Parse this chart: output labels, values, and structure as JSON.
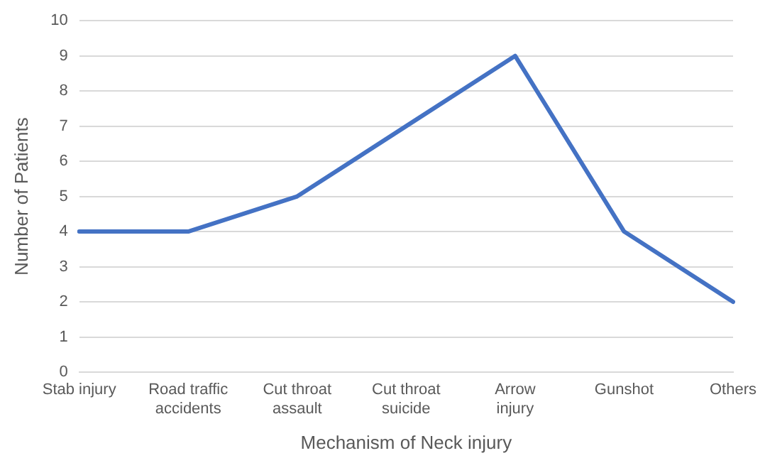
{
  "chart_data": {
    "type": "line",
    "xlabel": "Mechanism of Neck injury",
    "ylabel": "Number of Patients",
    "categories": [
      "Stab injury",
      "Road traffic accidents",
      "Cut throat assault",
      "Cut throat suicide",
      "Arrow injury",
      "Gunshot",
      "Others"
    ],
    "series": [
      {
        "color": "#4472c4",
        "values": [
          4,
          4,
          5,
          7,
          9,
          4,
          2
        ]
      }
    ],
    "ylim": [
      0,
      10
    ],
    "yticks": [
      0,
      1,
      2,
      3,
      4,
      5,
      6,
      7,
      8,
      9,
      10
    ],
    "grid": "y",
    "legend": false,
    "marker": "none",
    "line_style": "solid"
  }
}
